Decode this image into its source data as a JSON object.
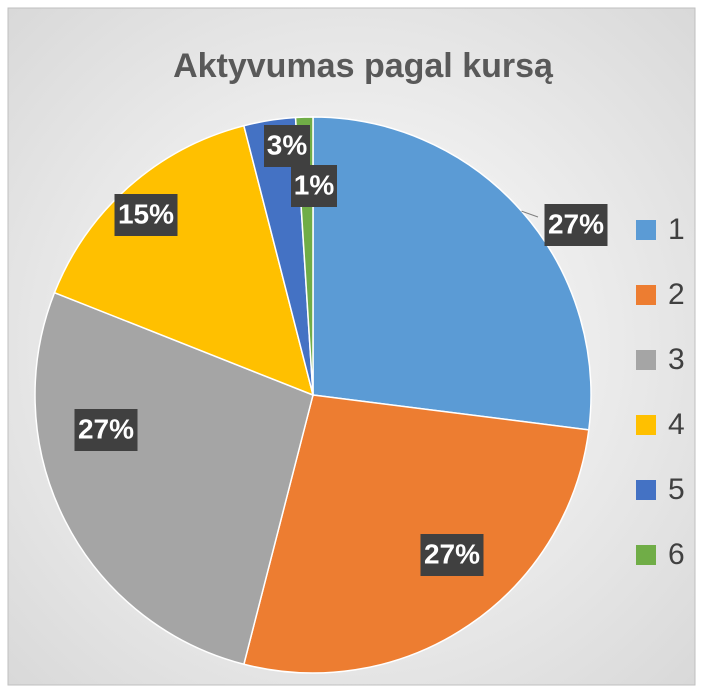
{
  "chart_data": {
    "type": "pie",
    "title": "Aktyvumas pagal kursą",
    "categories": [
      "1",
      "2",
      "3",
      "4",
      "5",
      "6"
    ],
    "values": [
      27,
      27,
      27,
      15,
      3,
      1
    ],
    "value_labels": [
      "27%",
      "27%",
      "27%",
      "15%",
      "3%",
      "1%"
    ],
    "colors": [
      "#5b9bd5",
      "#ed7d31",
      "#a5a5a5",
      "#ffc000",
      "#4472c4",
      "#70ad47"
    ],
    "legend": "right"
  }
}
